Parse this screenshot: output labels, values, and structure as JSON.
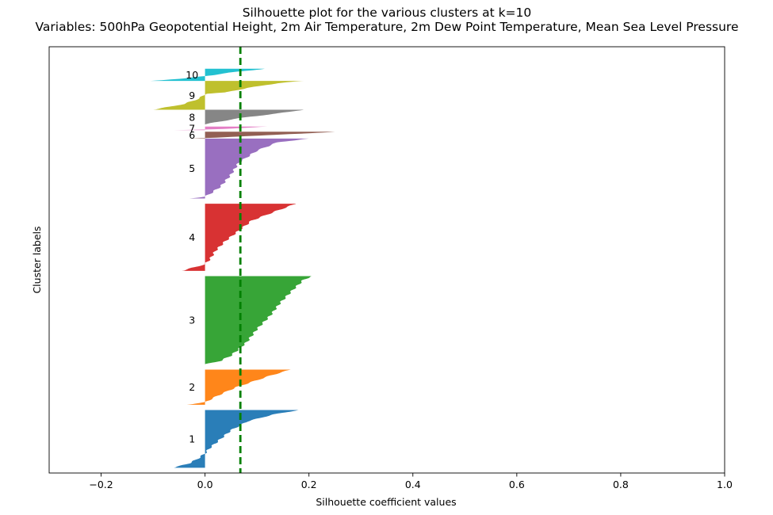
{
  "chart_data": {
    "type": "area",
    "title": "Silhouette plot for the various clusters at k=10",
    "subtitle": "Variables: 500hPa Geopotential Height, 2m Air Temperature, 2m Dew Point Temperature, Mean Sea Level Pressure",
    "xlabel": "Silhouette coefficient values",
    "ylabel": "Cluster labels",
    "xlim": [
      -0.3,
      1.0
    ],
    "xticks": [
      -0.2,
      0.0,
      0.2,
      0.4,
      0.6,
      0.8,
      1.0
    ],
    "xtick_labels": [
      "−0.2",
      "0.0",
      "0.2",
      "0.4",
      "0.6",
      "0.8",
      "1.0"
    ],
    "ylim": [
      0,
      812
    ],
    "show_yticks": false,
    "grid": false,
    "average_silhouette": 0.068,
    "average_line_color": "#008000",
    "clusters": [
      {
        "label": "1",
        "color": "#1f77b4",
        "y_lower": 10,
        "y_upper": 120,
        "profile": [
          [
            0,
            0.18
          ],
          [
            0.08,
            0.13
          ],
          [
            0.2,
            0.08
          ],
          [
            0.35,
            0.05
          ],
          [
            0.5,
            0.03
          ],
          [
            0.65,
            0.01
          ],
          [
            0.75,
            0.0
          ],
          [
            0.85,
            -0.015
          ],
          [
            0.92,
            -0.03
          ],
          [
            1,
            -0.06
          ]
        ]
      },
      {
        "label": "2",
        "color": "#ff7f0e",
        "y_lower": 130,
        "y_upper": 197,
        "profile": [
          [
            0,
            0.165
          ],
          [
            0.15,
            0.13
          ],
          [
            0.3,
            0.1
          ],
          [
            0.5,
            0.06
          ],
          [
            0.7,
            0.03
          ],
          [
            0.85,
            0.01
          ],
          [
            0.93,
            0.0
          ],
          [
            1,
            -0.035
          ]
        ]
      },
      {
        "label": "3",
        "color": "#2ca02c",
        "y_lower": 207,
        "y_upper": 375,
        "profile": [
          [
            0,
            0.205
          ],
          [
            0.04,
            0.19
          ],
          [
            0.15,
            0.17
          ],
          [
            0.3,
            0.145
          ],
          [
            0.45,
            0.125
          ],
          [
            0.6,
            0.1
          ],
          [
            0.75,
            0.08
          ],
          [
            0.9,
            0.05
          ],
          [
            0.96,
            0.03
          ],
          [
            1,
            0.0
          ]
        ]
      },
      {
        "label": "4",
        "color": "#d62728",
        "y_lower": 385,
        "y_upper": 513,
        "profile": [
          [
            0,
            0.175
          ],
          [
            0.1,
            0.14
          ],
          [
            0.25,
            0.09
          ],
          [
            0.4,
            0.065
          ],
          [
            0.55,
            0.04
          ],
          [
            0.7,
            0.02
          ],
          [
            0.82,
            0.01
          ],
          [
            0.9,
            0.0
          ],
          [
            1,
            -0.045
          ]
        ]
      },
      {
        "label": "5",
        "color": "#9467bd",
        "y_lower": 523,
        "y_upper": 637,
        "profile": [
          [
            0,
            0.2
          ],
          [
            0.06,
            0.14
          ],
          [
            0.2,
            0.1
          ],
          [
            0.4,
            0.065
          ],
          [
            0.6,
            0.05
          ],
          [
            0.8,
            0.03
          ],
          [
            0.92,
            0.01
          ],
          [
            0.97,
            0.0
          ],
          [
            1,
            -0.03
          ]
        ]
      },
      {
        "label": "6",
        "color": "#8c564b",
        "y_lower": 637,
        "y_upper": 650,
        "profile": [
          [
            0,
            0.25
          ],
          [
            0.3,
            0.18
          ],
          [
            0.6,
            0.09
          ],
          [
            0.85,
            0.02
          ],
          [
            1,
            -0.03
          ]
        ]
      },
      {
        "label": "7",
        "color": "#e377c2",
        "y_lower": 653,
        "y_upper": 660,
        "profile": [
          [
            0,
            0.12
          ],
          [
            0.5,
            0.06
          ],
          [
            0.8,
            0.0
          ],
          [
            1,
            -0.06
          ]
        ]
      },
      {
        "label": "8",
        "color": "#7f7f7f",
        "y_lower": 664,
        "y_upper": 692,
        "profile": [
          [
            0,
            0.19
          ],
          [
            0.25,
            0.14
          ],
          [
            0.55,
            0.07
          ],
          [
            0.85,
            0.02
          ],
          [
            1,
            0.0
          ]
        ]
      },
      {
        "label": "9",
        "color": "#bcbd22",
        "y_lower": 692,
        "y_upper": 747,
        "profile": [
          [
            0,
            0.19
          ],
          [
            0.08,
            0.14
          ],
          [
            0.25,
            0.08
          ],
          [
            0.4,
            0.04
          ],
          [
            0.45,
            0.0
          ],
          [
            0.6,
            -0.01
          ],
          [
            0.8,
            -0.04
          ],
          [
            1,
            -0.1
          ]
        ]
      },
      {
        "label": "10",
        "color": "#17becf",
        "y_lower": 747,
        "y_upper": 770,
        "profile": [
          [
            0,
            0.115
          ],
          [
            0.3,
            0.05
          ],
          [
            0.55,
            0.01
          ],
          [
            0.6,
            0.0
          ],
          [
            0.8,
            -0.04
          ],
          [
            1,
            -0.105
          ]
        ]
      }
    ]
  }
}
